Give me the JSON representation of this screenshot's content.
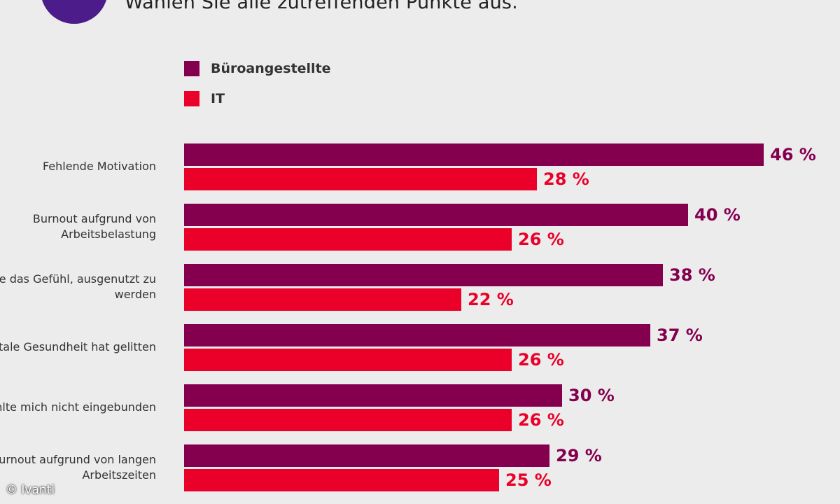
{
  "subtitle": "Wählen Sie alle zutreffenden Punkte aus.",
  "copyright": "© Ivanti",
  "colors": {
    "series1": "#84004f",
    "series2": "#ea0029"
  },
  "chart_data": {
    "type": "bar",
    "orientation": "horizontal",
    "categories": [
      "Fehlende Motivation",
      "Burnout aufgrund von Arbeitsbelastung",
      "Hatte das Gefühl, ausgenutzt zu werden",
      "Mentale Gesundheit hat gelitten",
      "Fühlte mich nicht eingebunden",
      "Burnout aufgrund von langen Arbeitszeiten"
    ],
    "series": [
      {
        "name": "Büroangestellte",
        "values": [
          46,
          40,
          38,
          37,
          30,
          29
        ],
        "labels": [
          "46 %",
          "40 %",
          "38 %",
          "37 %",
          "30 %",
          "29 %"
        ]
      },
      {
        "name": "IT",
        "values": [
          28,
          26,
          22,
          26,
          26,
          25
        ],
        "labels": [
          "28 %",
          "26 %",
          "22 %",
          "26 %",
          "26 %",
          "25 %"
        ]
      }
    ],
    "value_unit": "%",
    "legend_position": "top-left"
  }
}
